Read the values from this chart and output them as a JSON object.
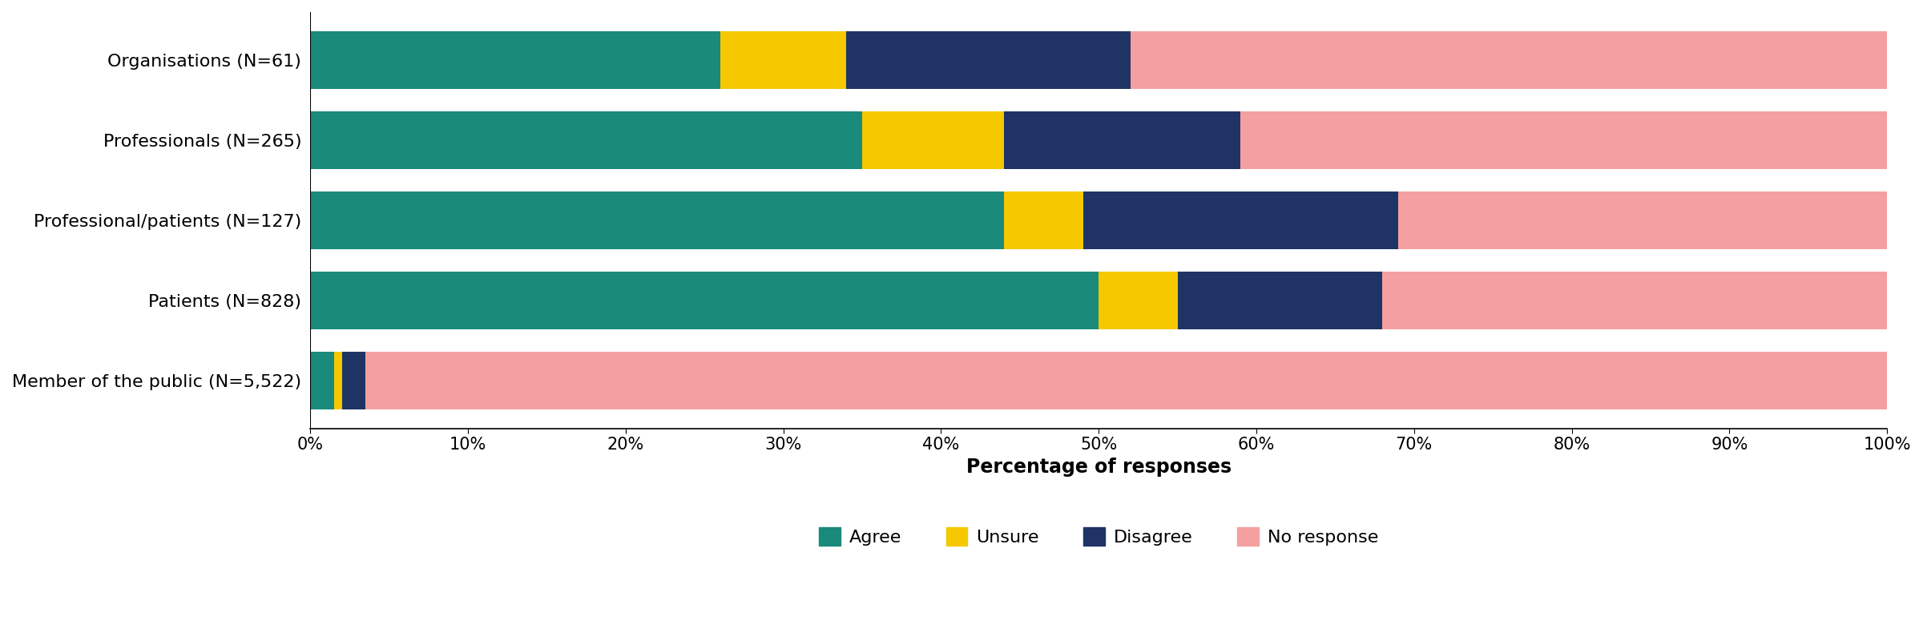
{
  "categories": [
    "Organisations (N=61)",
    "Professionals (N=265)",
    "Professional/patients (N=127)",
    "Patients (N=828)",
    "Member of the public (N=5,522)"
  ],
  "agree": [
    26,
    35,
    44,
    50,
    1.5
  ],
  "unsure": [
    8,
    9,
    5,
    5,
    0.5
  ],
  "disagree": [
    18,
    15,
    20,
    13,
    1.5
  ],
  "no_response": [
    48,
    41,
    31,
    32,
    96.5
  ],
  "colors": {
    "agree": "#1a8a7a",
    "unsure": "#f5c800",
    "disagree": "#1f3464",
    "no_response": "#f4a0a0"
  },
  "legend_labels": [
    "Agree",
    "Unsure",
    "Disagree",
    "No response"
  ],
  "xlabel": "Percentage of responses",
  "xlim": [
    0,
    100
  ],
  "xticks": [
    0,
    10,
    20,
    30,
    40,
    50,
    60,
    70,
    80,
    90,
    100
  ],
  "xtick_labels": [
    "0%",
    "10%",
    "20%",
    "30%",
    "40%",
    "50%",
    "60%",
    "70%",
    "80%",
    "90%",
    "100%"
  ],
  "figsize": [
    24,
    8
  ],
  "dpi": 100,
  "bar_height": 0.72,
  "ytick_fontsize": 16,
  "xtick_fontsize": 15,
  "xlabel_fontsize": 17,
  "legend_fontsize": 16,
  "background_color": "#ffffff"
}
